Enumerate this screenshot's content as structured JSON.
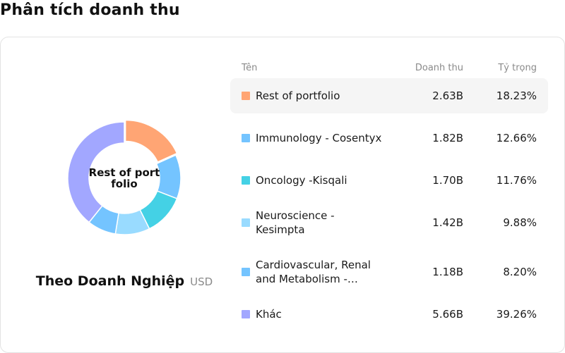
{
  "page_title": "Phân tích doanh thu",
  "chart_caption": {
    "title": "Theo Doanh Nghiệp",
    "unit": "USD"
  },
  "table": {
    "headers": {
      "name": "Tên",
      "revenue": "Doanh thu",
      "share": "Tỷ trọng"
    }
  },
  "chart_data": {
    "type": "pie",
    "variant": "donut",
    "center_label": "Rest of portfolio",
    "highlighted_category": "Rest of portfolio",
    "categories": [
      "Rest of portfolio",
      "Immunology - Cosentyx",
      "Oncology -Kisqali",
      "Neuroscience - Kesimpta",
      "Cardiovascular, Renal and Metabolism -…",
      "Khác"
    ],
    "revenue_labels": [
      "2.63B",
      "1.82B",
      "1.70B",
      "1.42B",
      "1.18B",
      "5.66B"
    ],
    "values": [
      2.63,
      1.82,
      1.7,
      1.42,
      1.18,
      5.66
    ],
    "shares": [
      18.23,
      12.66,
      11.76,
      9.88,
      8.2,
      39.26
    ],
    "share_labels": [
      "18.23%",
      "12.66%",
      "11.76%",
      "9.88%",
      "8.20%",
      "39.26%"
    ],
    "colors": [
      "#FFA574",
      "#74C4FF",
      "#44D1E5",
      "#99DBFF",
      "#74C4FF",
      "#A2A7FF"
    ],
    "unit": "USD"
  }
}
